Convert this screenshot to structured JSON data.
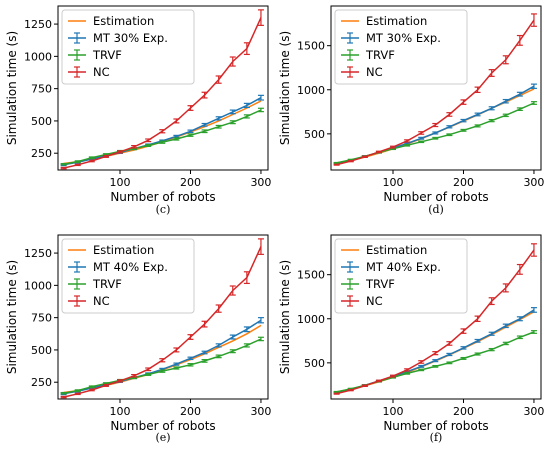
{
  "colors": {
    "Estimation": "#ff7f0e",
    "MT": "#1f77b4",
    "TRVF": "#2ca02c",
    "NC": "#d62728"
  },
  "chart_data": [
    {
      "type": "line",
      "caption": "(c)",
      "xlabel": "Number of robots",
      "ylabel": "Simulation time (s)",
      "xlim": [
        12,
        310
      ],
      "ylim": [
        120,
        1390
      ],
      "xticks": [
        100,
        200,
        300
      ],
      "yticks": [
        250,
        500,
        750,
        1000,
        1250
      ],
      "legend_position": "top-left",
      "x": [
        20,
        40,
        60,
        80,
        100,
        120,
        140,
        160,
        180,
        200,
        220,
        240,
        260,
        280,
        300
      ],
      "series": [
        {
          "name": "Estimation",
          "color": "#ff7f0e",
          "errorbars": false,
          "values": [
            170,
            185,
            205,
            225,
            250,
            275,
            305,
            340,
            375,
            415,
            455,
            500,
            550,
            600,
            655
          ]
        },
        {
          "name": "MT 30% Exp.",
          "color": "#1f77b4",
          "errorbars": true,
          "values": [
            160,
            180,
            205,
            230,
            255,
            285,
            315,
            345,
            380,
            420,
            470,
            520,
            570,
            620,
            680
          ],
          "errors": [
            6,
            6,
            6,
            6,
            6,
            6,
            6,
            7,
            8,
            9,
            10,
            12,
            14,
            16,
            18
          ]
        },
        {
          "name": "TRVF",
          "color": "#2ca02c",
          "errorbars": true,
          "values": [
            165,
            185,
            215,
            240,
            265,
            285,
            310,
            335,
            360,
            390,
            420,
            455,
            490,
            535,
            585
          ],
          "errors": [
            5,
            6,
            6,
            6,
            6,
            7,
            7,
            8,
            8,
            9,
            10,
            10,
            11,
            12,
            13
          ]
        },
        {
          "name": "NC",
          "color": "#d62728",
          "errorbars": true,
          "values": [
            135,
            160,
            190,
            225,
            260,
            300,
            350,
            420,
            500,
            600,
            700,
            820,
            960,
            1060,
            1300
          ],
          "errors": [
            5,
            5,
            6,
            7,
            8,
            9,
            10,
            12,
            15,
            18,
            22,
            28,
            35,
            45,
            60
          ]
        }
      ]
    },
    {
      "type": "line",
      "caption": "(d)",
      "xlabel": "Number of robots",
      "ylabel": "Simulation time (s)",
      "xlim": [
        12,
        310
      ],
      "ylim": [
        90,
        1950
      ],
      "xticks": [
        100,
        200,
        300
      ],
      "yticks": [
        500,
        1000,
        1500
      ],
      "legend_position": "top-left",
      "x": [
        20,
        40,
        60,
        80,
        100,
        120,
        140,
        160,
        180,
        200,
        220,
        240,
        260,
        280,
        300
      ],
      "series": [
        {
          "name": "Estimation",
          "color": "#ff7f0e",
          "errorbars": false,
          "values": [
            170,
            195,
            235,
            280,
            330,
            385,
            445,
            510,
            575,
            645,
            715,
            790,
            860,
            935,
            1010
          ]
        },
        {
          "name": "MT 30% Exp.",
          "color": "#1f77b4",
          "errorbars": true,
          "values": [
            165,
            200,
            245,
            290,
            340,
            390,
            450,
            510,
            580,
            650,
            720,
            790,
            870,
            950,
            1040
          ],
          "errors": [
            6,
            6,
            7,
            7,
            8,
            9,
            10,
            11,
            12,
            13,
            15,
            17,
            19,
            21,
            24
          ]
        },
        {
          "name": "TRVF",
          "color": "#2ca02c",
          "errorbars": true,
          "values": [
            170,
            205,
            245,
            290,
            330,
            370,
            410,
            450,
            490,
            540,
            590,
            650,
            710,
            780,
            850
          ],
          "errors": [
            5,
            6,
            6,
            7,
            7,
            8,
            8,
            9,
            9,
            10,
            11,
            12,
            13,
            14,
            15
          ]
        },
        {
          "name": "NC",
          "color": "#d62728",
          "errorbars": true,
          "values": [
            150,
            190,
            240,
            295,
            350,
            420,
            510,
            600,
            720,
            860,
            1000,
            1190,
            1340,
            1560,
            1790
          ],
          "errors": [
            5,
            6,
            7,
            8,
            10,
            12,
            14,
            17,
            20,
            25,
            30,
            38,
            45,
            55,
            70
          ]
        }
      ]
    },
    {
      "type": "line",
      "caption": "(e)",
      "xlabel": "Number of robots",
      "ylabel": "Simulation time (s)",
      "xlim": [
        12,
        310
      ],
      "ylim": [
        120,
        1390
      ],
      "xticks": [
        100,
        200,
        300
      ],
      "yticks": [
        250,
        500,
        750,
        1000,
        1250
      ],
      "legend_position": "top-left",
      "x": [
        20,
        40,
        60,
        80,
        100,
        120,
        140,
        160,
        180,
        200,
        220,
        240,
        260,
        280,
        300
      ],
      "series": [
        {
          "name": "Estimation",
          "color": "#ff7f0e",
          "errorbars": false,
          "values": [
            170,
            185,
            205,
            225,
            250,
            280,
            310,
            345,
            385,
            425,
            470,
            520,
            570,
            625,
            690
          ]
        },
        {
          "name": "MT 40% Exp.",
          "color": "#1f77b4",
          "errorbars": true,
          "values": [
            160,
            180,
            205,
            230,
            255,
            285,
            315,
            350,
            390,
            435,
            480,
            535,
            600,
            660,
            730
          ],
          "errors": [
            6,
            6,
            6,
            6,
            6,
            6,
            7,
            7,
            8,
            9,
            10,
            12,
            15,
            18,
            20
          ]
        },
        {
          "name": "TRVF",
          "color": "#2ca02c",
          "errorbars": true,
          "values": [
            165,
            185,
            215,
            240,
            265,
            285,
            310,
            335,
            360,
            385,
            415,
            450,
            490,
            535,
            585
          ],
          "errors": [
            5,
            6,
            6,
            6,
            6,
            7,
            7,
            8,
            8,
            9,
            10,
            10,
            11,
            12,
            13
          ]
        },
        {
          "name": "NC",
          "color": "#d62728",
          "errorbars": true,
          "values": [
            135,
            160,
            190,
            225,
            260,
            300,
            350,
            420,
            500,
            600,
            700,
            820,
            960,
            1060,
            1300
          ],
          "errors": [
            5,
            5,
            6,
            7,
            8,
            9,
            10,
            12,
            15,
            18,
            22,
            28,
            35,
            45,
            60
          ]
        }
      ]
    },
    {
      "type": "line",
      "caption": "(f)",
      "xlabel": "Number of robots",
      "ylabel": "Simulation time (s)",
      "xlim": [
        12,
        310
      ],
      "ylim": [
        90,
        1950
      ],
      "xticks": [
        100,
        200,
        300
      ],
      "yticks": [
        500,
        1000,
        1500
      ],
      "legend_position": "top-left",
      "x": [
        20,
        40,
        60,
        80,
        100,
        120,
        140,
        160,
        180,
        200,
        220,
        240,
        260,
        280,
        300
      ],
      "series": [
        {
          "name": "Estimation",
          "color": "#ff7f0e",
          "errorbars": false,
          "values": [
            170,
            200,
            240,
            285,
            335,
            390,
            455,
            520,
            590,
            665,
            740,
            820,
            905,
            990,
            1080
          ]
        },
        {
          "name": "MT 40% Exp.",
          "color": "#1f77b4",
          "errorbars": true,
          "values": [
            165,
            200,
            245,
            295,
            345,
            400,
            460,
            525,
            595,
            670,
            750,
            830,
            920,
            1000,
            1100
          ],
          "errors": [
            6,
            6,
            7,
            7,
            8,
            9,
            10,
            11,
            12,
            13,
            15,
            17,
            19,
            22,
            26
          ]
        },
        {
          "name": "TRVF",
          "color": "#2ca02c",
          "errorbars": true,
          "values": [
            170,
            205,
            245,
            290,
            335,
            380,
            420,
            460,
            500,
            550,
            600,
            650,
            720,
            790,
            850
          ],
          "errors": [
            5,
            6,
            6,
            7,
            7,
            8,
            8,
            9,
            9,
            10,
            11,
            12,
            13,
            14,
            15
          ]
        },
        {
          "name": "NC",
          "color": "#d62728",
          "errorbars": true,
          "values": [
            150,
            190,
            240,
            295,
            350,
            420,
            510,
            610,
            720,
            860,
            1000,
            1200,
            1350,
            1560,
            1780
          ],
          "errors": [
            5,
            6,
            7,
            8,
            10,
            12,
            14,
            17,
            20,
            25,
            30,
            38,
            45,
            55,
            70
          ]
        }
      ]
    }
  ]
}
